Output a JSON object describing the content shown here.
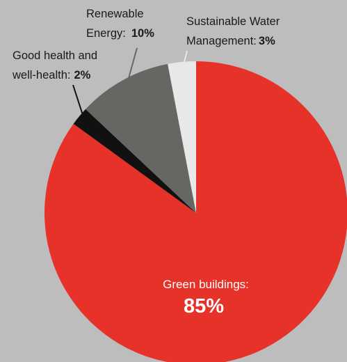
{
  "chart_data": {
    "type": "pie",
    "start_angle_deg": 0,
    "direction": "clockwise",
    "slices": [
      {
        "name": "Green buildings",
        "value": 85,
        "value_text": "85%",
        "label_lines": [
          "Green buildings:"
        ],
        "color": "#e63228",
        "label_position": "inside"
      },
      {
        "name": "Good health and well-health",
        "value": 2,
        "value_text": "2%",
        "label_lines": [
          "Good health and",
          "well-health:"
        ],
        "color": "#111111",
        "label_position": "outside-top-left"
      },
      {
        "name": "Renewable Energy",
        "value": 10,
        "value_text": "10%",
        "label_lines": [
          "Renewable",
          "Energy:"
        ],
        "color": "#666663",
        "label_position": "outside-top"
      },
      {
        "name": "Sustainable Water Management",
        "value": 3,
        "value_text": "3%",
        "label_lines": [
          "Sustainable Water",
          "Management:"
        ],
        "color": "#e8e8e8",
        "label_position": "outside-top-right"
      }
    ]
  }
}
